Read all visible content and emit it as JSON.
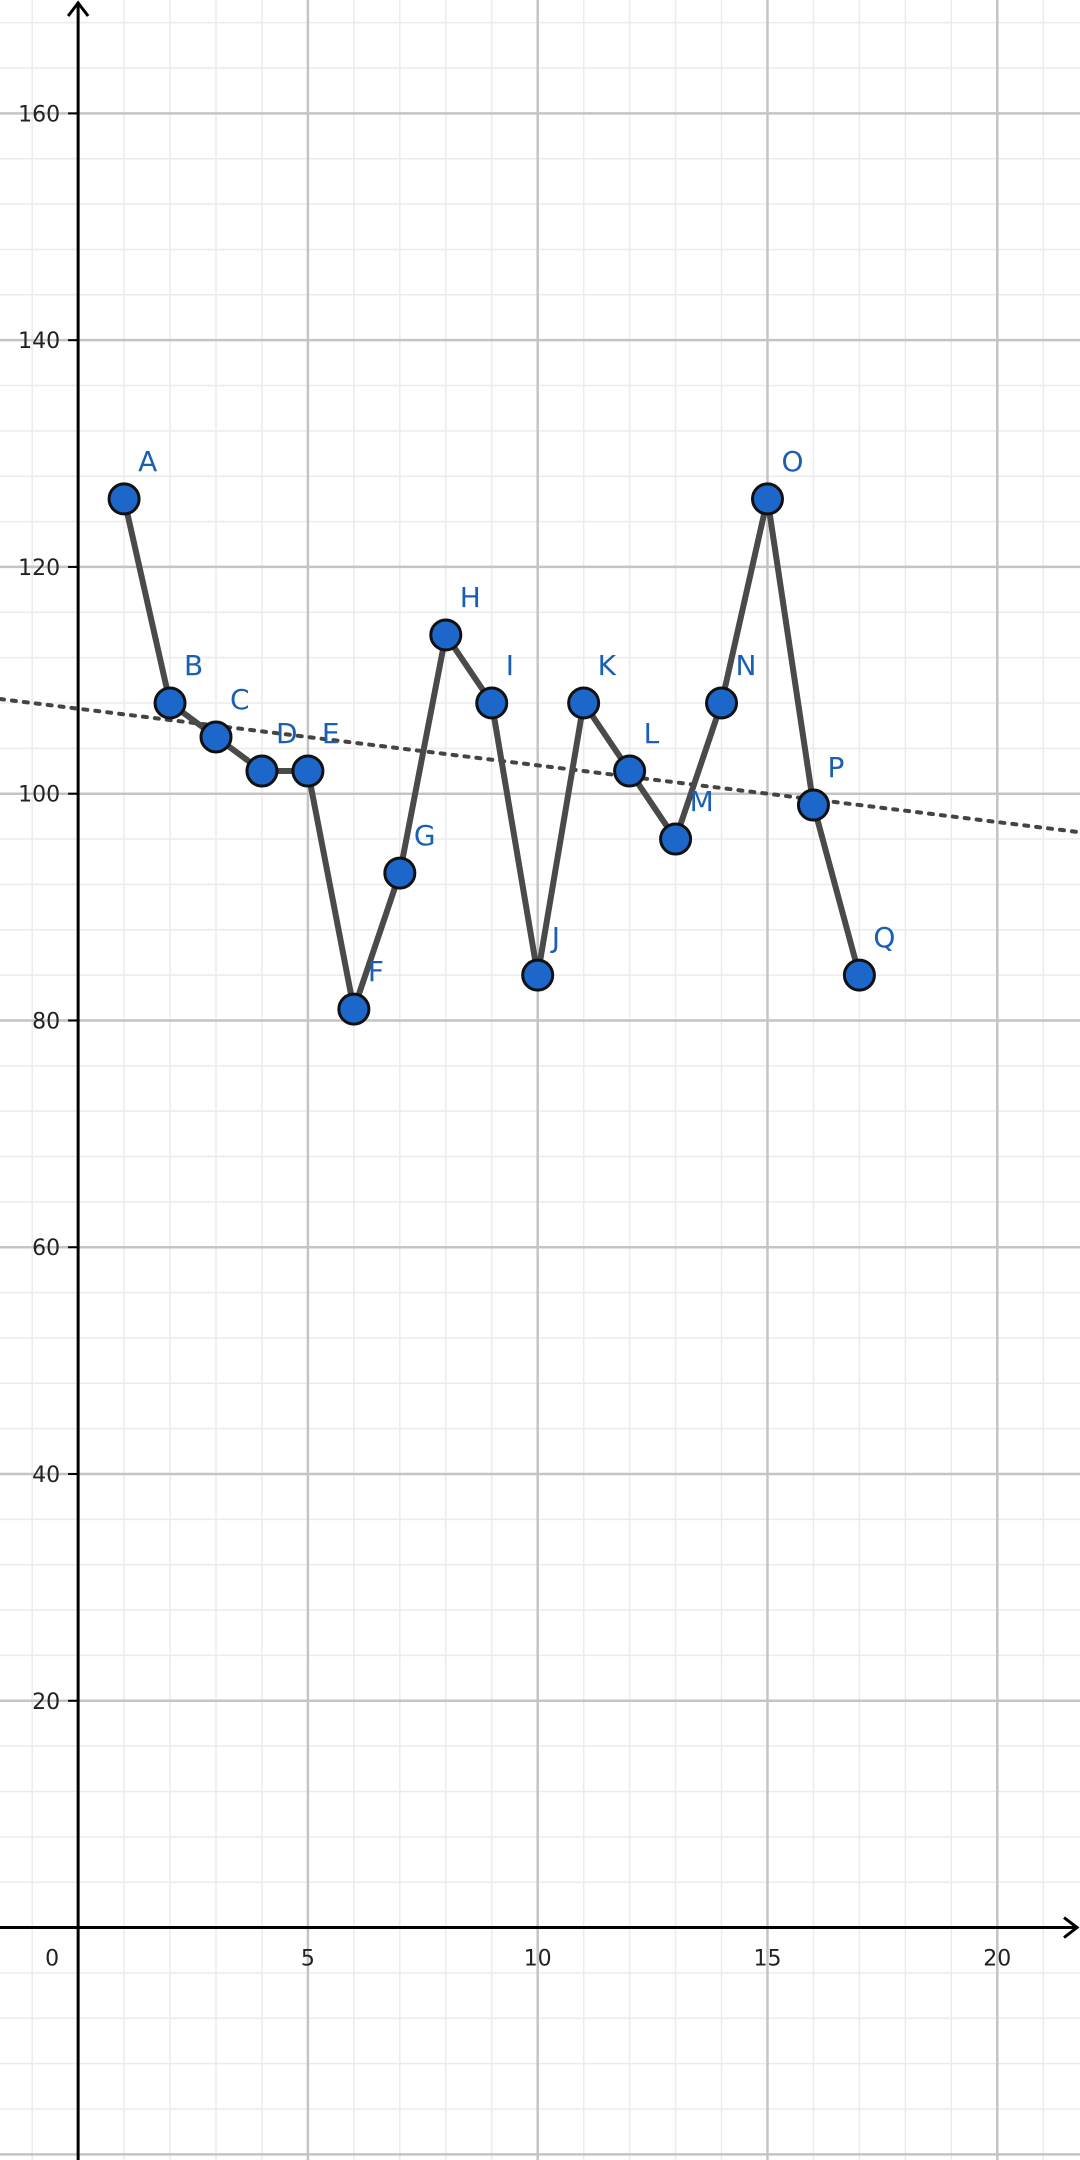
{
  "chart_data": {
    "type": "line",
    "title": "",
    "xlabel": "",
    "ylabel": "",
    "xlim": [
      -1.7,
      21.8
    ],
    "ylim": [
      -20.5,
      170
    ],
    "grid": true,
    "x_ticks": [
      0,
      5,
      10,
      15,
      20
    ],
    "y_ticks": [
      20,
      40,
      60,
      80,
      100,
      120,
      140,
      160
    ],
    "series": [
      {
        "points": [
          {
            "label": "A",
            "x": 1,
            "y": 126
          },
          {
            "label": "B",
            "x": 2,
            "y": 108
          },
          {
            "label": "C",
            "x": 3,
            "y": 105
          },
          {
            "label": "D",
            "x": 4,
            "y": 102
          },
          {
            "label": "E",
            "x": 5,
            "y": 102
          },
          {
            "label": "F",
            "x": 6,
            "y": 81
          },
          {
            "label": "G",
            "x": 7,
            "y": 93
          },
          {
            "label": "H",
            "x": 8,
            "y": 114
          },
          {
            "label": "I",
            "x": 9,
            "y": 108
          },
          {
            "label": "J",
            "x": 10,
            "y": 84
          },
          {
            "label": "K",
            "x": 11,
            "y": 108
          },
          {
            "label": "L",
            "x": 12,
            "y": 102
          },
          {
            "label": "M",
            "x": 13,
            "y": 96
          },
          {
            "label": "N",
            "x": 14,
            "y": 108
          },
          {
            "label": "O",
            "x": 15,
            "y": 126
          },
          {
            "label": "P",
            "x": 16,
            "y": 99
          },
          {
            "label": "Q",
            "x": 17,
            "y": 84
          }
        ]
      }
    ],
    "trend_line": {
      "style": "dotted",
      "slope": -0.5,
      "intercept": 107.5
    },
    "colors": {
      "point_fill": "#1c67c9",
      "point_stroke": "#111111",
      "line": "#4a4a4a",
      "label": "#1a5fb4",
      "major_grid": "#c4c4c4",
      "minor_grid": "#ebebeb",
      "axis": "#000000",
      "trend": "#444444"
    }
  }
}
